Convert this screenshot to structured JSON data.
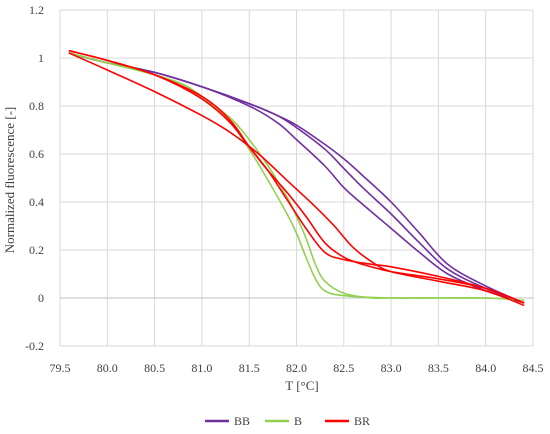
{
  "chart_data": {
    "type": "line",
    "title": "",
    "xlabel": "T [°C]",
    "ylabel": "Normalized fluorescence [-]",
    "xlim": [
      79.5,
      84.5
    ],
    "ylim": [
      -0.2,
      1.2
    ],
    "x_ticks": [
      "79.5",
      "80.0",
      "80.5",
      "81.0",
      "81.5",
      "82.0",
      "82.5",
      "83.0",
      "83.5",
      "84.0",
      "84.5"
    ],
    "y_ticks": [
      "-0.2",
      "0",
      "0.2",
      "0.4",
      "0.6",
      "0.8",
      "1",
      "1.2"
    ],
    "x_tick_values": [
      79.5,
      80.0,
      80.5,
      81.0,
      81.5,
      82.0,
      82.5,
      83.0,
      83.5,
      84.0,
      84.5
    ],
    "y_tick_values": [
      -0.2,
      0,
      0.2,
      0.4,
      0.6,
      0.8,
      1.0,
      1.2
    ],
    "grid": true,
    "legend_position": "bottom",
    "legend": [
      {
        "group": "BB",
        "color": "#7030a0"
      },
      {
        "group": "B",
        "color": "#92d050"
      },
      {
        "group": "BR",
        "color": "#ff0000"
      }
    ],
    "series": [
      {
        "group": "BB",
        "color": "#7030a0",
        "points": [
          [
            79.6,
            1.02
          ],
          [
            80.0,
            0.98
          ],
          [
            80.5,
            0.94
          ],
          [
            81.0,
            0.88
          ],
          [
            81.5,
            0.8
          ],
          [
            81.8,
            0.73
          ],
          [
            82.0,
            0.66
          ],
          [
            82.3,
            0.55
          ],
          [
            82.5,
            0.46
          ],
          [
            82.7,
            0.39
          ],
          [
            83.0,
            0.29
          ],
          [
            83.3,
            0.19
          ],
          [
            83.6,
            0.1
          ],
          [
            84.0,
            0.03
          ],
          [
            84.4,
            -0.02
          ]
        ]
      },
      {
        "group": "BB",
        "color": "#7030a0",
        "points": [
          [
            79.6,
            1.02
          ],
          [
            80.0,
            0.98
          ],
          [
            80.5,
            0.94
          ],
          [
            81.0,
            0.88
          ],
          [
            81.5,
            0.81
          ],
          [
            81.8,
            0.76
          ],
          [
            82.0,
            0.72
          ],
          [
            82.3,
            0.64
          ],
          [
            82.5,
            0.58
          ],
          [
            82.7,
            0.51
          ],
          [
            83.0,
            0.4
          ],
          [
            83.3,
            0.27
          ],
          [
            83.6,
            0.14
          ],
          [
            84.0,
            0.05
          ],
          [
            84.4,
            -0.02
          ]
        ]
      },
      {
        "group": "BB",
        "color": "#7030a0",
        "points": [
          [
            79.6,
            1.02
          ],
          [
            80.0,
            0.98
          ],
          [
            80.5,
            0.94
          ],
          [
            81.0,
            0.88
          ],
          [
            81.5,
            0.81
          ],
          [
            81.8,
            0.76
          ],
          [
            82.0,
            0.71
          ],
          [
            82.3,
            0.62
          ],
          [
            82.5,
            0.54
          ],
          [
            82.7,
            0.46
          ],
          [
            83.0,
            0.35
          ],
          [
            83.3,
            0.23
          ],
          [
            83.6,
            0.12
          ],
          [
            84.0,
            0.04
          ],
          [
            84.4,
            -0.02
          ]
        ]
      },
      {
        "group": "B",
        "color": "#92d050",
        "points": [
          [
            79.6,
            1.02
          ],
          [
            80.0,
            0.98
          ],
          [
            80.5,
            0.93
          ],
          [
            80.8,
            0.88
          ],
          [
            81.0,
            0.83
          ],
          [
            81.3,
            0.73
          ],
          [
            81.5,
            0.62
          ],
          [
            81.7,
            0.49
          ],
          [
            81.9,
            0.35
          ],
          [
            82.0,
            0.27
          ],
          [
            82.1,
            0.17
          ],
          [
            82.2,
            0.08
          ],
          [
            82.3,
            0.03
          ],
          [
            82.5,
            0.01
          ],
          [
            83.0,
            0.0
          ],
          [
            84.0,
            0.0
          ],
          [
            84.4,
            -0.01
          ]
        ]
      },
      {
        "group": "B",
        "color": "#92d050",
        "points": [
          [
            79.6,
            1.02
          ],
          [
            80.0,
            0.98
          ],
          [
            80.5,
            0.93
          ],
          [
            80.8,
            0.89
          ],
          [
            81.0,
            0.84
          ],
          [
            81.3,
            0.75
          ],
          [
            81.5,
            0.66
          ],
          [
            81.7,
            0.55
          ],
          [
            81.9,
            0.42
          ],
          [
            82.0,
            0.34
          ],
          [
            82.1,
            0.25
          ],
          [
            82.2,
            0.14
          ],
          [
            82.3,
            0.07
          ],
          [
            82.5,
            0.02
          ],
          [
            82.8,
            0.0
          ],
          [
            83.0,
            0.0
          ],
          [
            84.0,
            0.0
          ],
          [
            84.4,
            -0.01
          ]
        ]
      },
      {
        "group": "BR",
        "color": "#ff0000",
        "points": [
          [
            79.6,
            1.03
          ],
          [
            80.0,
            0.99
          ],
          [
            80.5,
            0.93
          ],
          [
            81.0,
            0.84
          ],
          [
            81.3,
            0.74
          ],
          [
            81.5,
            0.63
          ],
          [
            81.7,
            0.53
          ],
          [
            81.9,
            0.44
          ],
          [
            82.1,
            0.34
          ],
          [
            82.3,
            0.23
          ],
          [
            82.5,
            0.17
          ],
          [
            82.7,
            0.14
          ],
          [
            83.0,
            0.11
          ],
          [
            83.5,
            0.08
          ],
          [
            84.0,
            0.04
          ],
          [
            84.4,
            -0.02
          ]
        ]
      },
      {
        "group": "BR",
        "color": "#ff0000",
        "points": [
          [
            79.6,
            1.03
          ],
          [
            80.0,
            0.99
          ],
          [
            80.5,
            0.93
          ],
          [
            81.0,
            0.83
          ],
          [
            81.3,
            0.73
          ],
          [
            81.5,
            0.63
          ],
          [
            81.7,
            0.53
          ],
          [
            81.9,
            0.41
          ],
          [
            82.1,
            0.29
          ],
          [
            82.3,
            0.19
          ],
          [
            82.5,
            0.16
          ],
          [
            82.8,
            0.14
          ],
          [
            83.0,
            0.13
          ],
          [
            83.5,
            0.09
          ],
          [
            84.0,
            0.04
          ],
          [
            84.4,
            -0.02
          ]
        ]
      },
      {
        "group": "BR",
        "color": "#ff0000",
        "points": [
          [
            79.6,
            1.02
          ],
          [
            80.0,
            0.95
          ],
          [
            80.5,
            0.86
          ],
          [
            81.0,
            0.76
          ],
          [
            81.3,
            0.69
          ],
          [
            81.6,
            0.6
          ],
          [
            81.9,
            0.49
          ],
          [
            82.2,
            0.38
          ],
          [
            82.4,
            0.3
          ],
          [
            82.6,
            0.21
          ],
          [
            82.8,
            0.15
          ],
          [
            83.0,
            0.11
          ],
          [
            83.5,
            0.07
          ],
          [
            84.0,
            0.03
          ],
          [
            84.4,
            -0.03
          ]
        ]
      }
    ]
  }
}
